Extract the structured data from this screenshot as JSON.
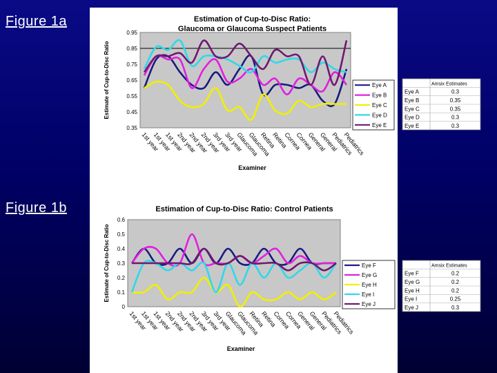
{
  "labels": {
    "fig_a": "Figure 1a",
    "fig_b": "Figure 1b"
  },
  "chart_data": [
    {
      "type": "line",
      "title": "Estimation of Cup-to-Disc Ratio:",
      "subtitle": "Glaucoma or Glaucoma Suspect Patients",
      "xlabel": "Examiner",
      "ylabel": "Estimate of Cup-to-Disc Ratio",
      "ylim": [
        0.35,
        0.95
      ],
      "yticks": [
        "0.95",
        "0.85",
        "0.75",
        "0.65",
        "0.55",
        "0.45",
        "0.35"
      ],
      "categories": [
        "1st year",
        "1st year",
        "1st year",
        "2nd year",
        "2nd year",
        "2nd year",
        "3rd year",
        "3rd year",
        "Glaucoma",
        "Glaucoma",
        "Retina",
        "Retina",
        "Cornea",
        "Cornea",
        "General",
        "General",
        "Pediatrics",
        "Pediatrics"
      ],
      "reference_line": 0.85,
      "series": [
        {
          "name": "Eye A",
          "color": "#1a1a80",
          "values": [
            0.6,
            0.78,
            0.8,
            0.7,
            0.62,
            0.6,
            0.7,
            0.62,
            0.72,
            0.8,
            0.56,
            0.62,
            0.62,
            0.6,
            0.62,
            0.52,
            0.5,
            0.72
          ]
        },
        {
          "name": "Eye B",
          "color": "#e020e0",
          "values": [
            0.68,
            0.8,
            0.78,
            0.78,
            0.6,
            0.72,
            0.78,
            0.64,
            0.66,
            0.72,
            0.62,
            0.66,
            0.56,
            0.66,
            0.62,
            0.58,
            0.7,
            0.62
          ]
        },
        {
          "name": "Eye C",
          "color": "#f0f000",
          "values": [
            0.6,
            0.64,
            0.62,
            0.52,
            0.48,
            0.5,
            0.6,
            0.46,
            0.48,
            0.4,
            0.56,
            0.46,
            0.44,
            0.52,
            0.48,
            0.5,
            0.5,
            0.5
          ]
        },
        {
          "name": "Eye D",
          "color": "#30d8e8",
          "values": [
            0.72,
            0.86,
            0.84,
            0.9,
            0.74,
            0.8,
            0.8,
            0.78,
            0.74,
            0.7,
            0.8,
            0.76,
            0.78,
            0.78,
            0.7,
            0.76,
            0.72,
            0.7
          ]
        },
        {
          "name": "Eye E",
          "color": "#701870",
          "values": [
            0.7,
            0.8,
            0.8,
            0.82,
            0.76,
            0.9,
            0.8,
            0.8,
            0.88,
            0.8,
            0.72,
            0.84,
            0.8,
            0.8,
            0.62,
            0.8,
            0.62,
            0.9
          ]
        }
      ],
      "table": {
        "header": "Amsix Estimates",
        "rows": [
          [
            "Eye A",
            "0.3"
          ],
          [
            "Eye B",
            "0.35"
          ],
          [
            "Eye C",
            "0.35"
          ],
          [
            "Eye D",
            "0.3"
          ],
          [
            "Eye E",
            "0.3"
          ]
        ]
      }
    },
    {
      "type": "line",
      "title": "Estimation of Cup-to-Disc Ratio:  Control Patients",
      "xlabel": "Examiner",
      "ylabel": "Estimate of Cup-to-Disc Ratio",
      "ylim": [
        0,
        0.6
      ],
      "yticks": [
        "0.6",
        "0.5",
        "0.4",
        "0.3",
        "0.2",
        "0.1",
        "0"
      ],
      "categories": [
        "1st year",
        "1st year",
        "1st year",
        "2nd year",
        "2nd year",
        "2nd year",
        "3rd year",
        "3rd year",
        "Glaucoma",
        "Glaucoma",
        "Retina",
        "Retina",
        "Cornea",
        "Cornea",
        "General",
        "General",
        "Pediatrics",
        "Pediatrics"
      ],
      "series": [
        {
          "name": "Eye F",
          "color": "#1a1a80",
          "values": [
            0.3,
            0.4,
            0.3,
            0.3,
            0.4,
            0.3,
            0.4,
            0.3,
            0.4,
            0.3,
            0.3,
            0.4,
            0.3,
            0.3,
            0.4,
            0.3,
            0.3,
            0.3
          ]
        },
        {
          "name": "Eye G",
          "color": "#e020e0",
          "values": [
            0.3,
            0.4,
            0.4,
            0.3,
            0.3,
            0.5,
            0.3,
            0.3,
            0.3,
            0.35,
            0.3,
            0.35,
            0.4,
            0.3,
            0.35,
            0.3,
            0.3,
            0.3
          ]
        },
        {
          "name": "Eye H",
          "color": "#f0f000",
          "values": [
            0.1,
            0.1,
            0.15,
            0.05,
            0.1,
            0.1,
            0.2,
            0.1,
            0.15,
            0.0,
            0.1,
            0.05,
            0.05,
            0.1,
            0.05,
            0.1,
            0.05,
            0.1
          ]
        },
        {
          "name": "Eye I",
          "color": "#30d8e8",
          "values": [
            0.1,
            0.3,
            0.3,
            0.25,
            0.3,
            0.25,
            0.3,
            0.1,
            0.3,
            0.15,
            0.3,
            0.2,
            0.3,
            0.2,
            0.25,
            0.3,
            0.2,
            0.3
          ]
        },
        {
          "name": "Eye J",
          "color": "#701870",
          "values": [
            0.3,
            0.3,
            0.3,
            0.3,
            0.3,
            0.3,
            0.4,
            0.3,
            0.3,
            0.35,
            0.3,
            0.3,
            0.3,
            0.25,
            0.3,
            0.3,
            0.25,
            0.3
          ]
        }
      ],
      "table": {
        "header": "Amsix Estimates",
        "rows": [
          [
            "Eye F",
            "0.2"
          ],
          [
            "Eye G",
            "0.2"
          ],
          [
            "Eye H",
            "0.2"
          ],
          [
            "Eye I",
            "0.25"
          ],
          [
            "Eye J",
            "0.3"
          ]
        ]
      }
    }
  ]
}
